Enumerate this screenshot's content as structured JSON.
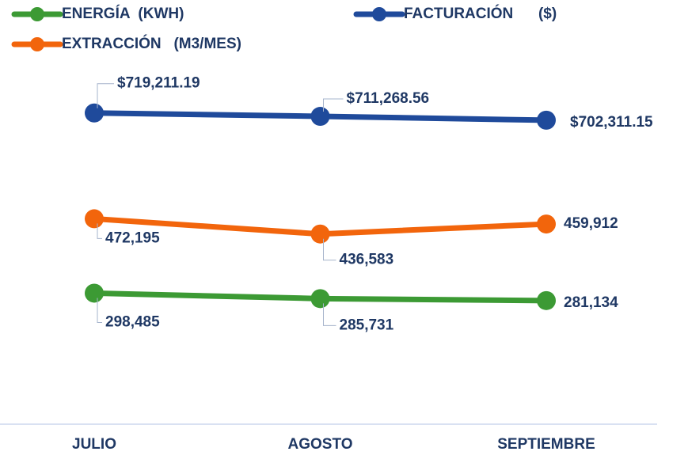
{
  "chart_data": {
    "type": "line",
    "categories": [
      "JULIO",
      "AGOSTO",
      "SEPTIEMBRE"
    ],
    "series": [
      {
        "name": "ENERGÍA  (KWH)",
        "color": "#3c9a34",
        "values": [
          298485,
          285731,
          281134
        ],
        "value_labels": [
          "298,485",
          "285,731",
          "281,134"
        ]
      },
      {
        "name": "FACTURACIÓN      ($)",
        "color": "#1f4a9b",
        "values": [
          719211.19,
          711268.56,
          702311.15
        ],
        "value_labels": [
          "$719,211.19",
          "$711,268.56",
          "$702,311.15"
        ]
      },
      {
        "name": "EXTRACCIÓN   (M3/MES)",
        "color": "#f2650c",
        "values": [
          472195,
          436583,
          459912
        ],
        "value_labels": [
          "472,195",
          "436,583",
          "459,912"
        ]
      }
    ],
    "ylim": [
      0,
      800000
    ]
  }
}
